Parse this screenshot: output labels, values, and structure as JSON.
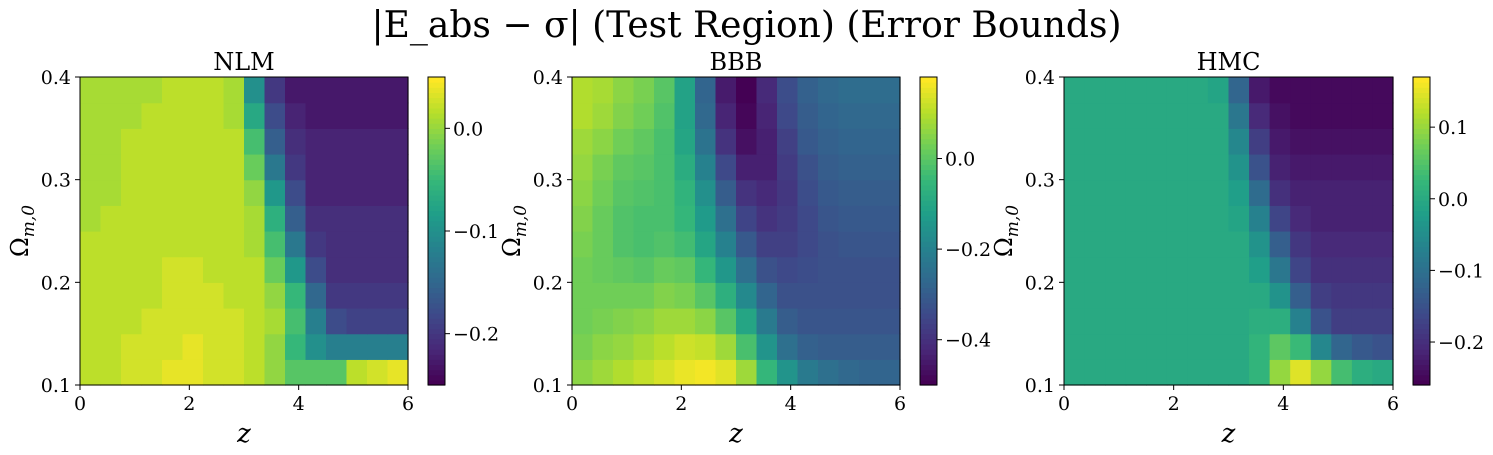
{
  "figure": {
    "suptitle": "|E_abs − σ| (Test Region) (Error Bounds)",
    "colormap": "viridis",
    "colors": [
      "#440154",
      "#482878",
      "#3e4989",
      "#31688e",
      "#26828e",
      "#1f9e89",
      "#35b779",
      "#6ece58",
      "#b5de2b",
      "#fde725"
    ]
  },
  "chart_data": [
    {
      "type": "heatmap",
      "title": "NLM",
      "xlabel": "z",
      "ylabel": "Ω_{m,0}",
      "xlim": [
        0,
        6
      ],
      "ylim": [
        0.1,
        0.4
      ],
      "xticks": [
        "0",
        "2",
        "4",
        "6"
      ],
      "yticks": [
        "0.1",
        "0.2",
        "0.3",
        "0.4"
      ],
      "clim": [
        -0.25,
        0.05
      ],
      "cticks": [
        "−0.2",
        "−0.1",
        "0.0"
      ],
      "cticks_values": [
        -0.2,
        -0.1,
        0.0
      ],
      "z": [
        [
          0.02,
          0.02,
          0.03,
          0.03,
          0.04,
          0.04,
          0.03,
          0.03,
          0.02,
          0.0,
          -0.03,
          -0.03,
          -0.03,
          0.02,
          0.03,
          0.04
        ],
        [
          0.02,
          0.02,
          0.03,
          0.03,
          0.03,
          0.04,
          0.03,
          0.03,
          0.02,
          0.0,
          -0.05,
          -0.1,
          -0.12,
          -0.12,
          -0.12,
          -0.12
        ],
        [
          0.02,
          0.02,
          0.02,
          0.03,
          0.03,
          0.03,
          0.03,
          0.03,
          0.02,
          0.01,
          -0.04,
          -0.12,
          -0.18,
          -0.19,
          -0.19,
          -0.19
        ],
        [
          0.02,
          0.02,
          0.02,
          0.02,
          0.03,
          0.03,
          0.03,
          0.02,
          0.02,
          0.0,
          -0.05,
          -0.15,
          -0.2,
          -0.2,
          -0.2,
          -0.2
        ],
        [
          0.02,
          0.02,
          0.02,
          0.02,
          0.03,
          0.03,
          0.02,
          0.02,
          0.02,
          -0.02,
          -0.09,
          -0.18,
          -0.21,
          -0.21,
          -0.21,
          -0.21
        ],
        [
          0.02,
          0.02,
          0.02,
          0.02,
          0.02,
          0.02,
          0.02,
          0.02,
          0.01,
          -0.04,
          -0.13,
          -0.2,
          -0.21,
          -0.21,
          -0.21,
          -0.21
        ],
        [
          0.01,
          0.02,
          0.02,
          0.02,
          0.02,
          0.02,
          0.02,
          0.02,
          0.01,
          -0.06,
          -0.16,
          -0.21,
          -0.21,
          -0.21,
          -0.21,
          -0.21
        ],
        [
          0.01,
          0.01,
          0.02,
          0.02,
          0.02,
          0.02,
          0.02,
          0.02,
          0.0,
          -0.09,
          -0.18,
          -0.22,
          -0.22,
          -0.22,
          -0.22,
          -0.22
        ],
        [
          0.01,
          0.01,
          0.02,
          0.02,
          0.02,
          0.02,
          0.02,
          0.02,
          -0.02,
          -0.13,
          -0.2,
          -0.22,
          -0.22,
          -0.22,
          -0.22,
          -0.22
        ],
        [
          0.01,
          0.01,
          0.02,
          0.02,
          0.02,
          0.02,
          0.02,
          0.02,
          -0.04,
          -0.16,
          -0.21,
          -0.22,
          -0.22,
          -0.22,
          -0.22,
          -0.22
        ],
        [
          0.01,
          0.01,
          0.01,
          0.02,
          0.02,
          0.02,
          0.02,
          0.01,
          -0.07,
          -0.18,
          -0.22,
          -0.23,
          -0.23,
          -0.23,
          -0.23,
          -0.23
        ],
        [
          0.01,
          0.01,
          0.01,
          0.01,
          0.02,
          0.02,
          0.02,
          0.01,
          -0.1,
          -0.2,
          -0.23,
          -0.23,
          -0.23,
          -0.23,
          -0.23,
          -0.23
        ]
      ]
    },
    {
      "type": "heatmap",
      "title": "BBB",
      "xlabel": "z",
      "ylabel": "Ω_{m,0}",
      "xlim": [
        0,
        6
      ],
      "ylim": [
        0.1,
        0.4
      ],
      "xticks": [
        "0",
        "2",
        "4",
        "6"
      ],
      "yticks": [
        "0.1",
        "0.2",
        "0.3",
        "0.4"
      ],
      "clim": [
        -0.5,
        0.18
      ],
      "cticks": [
        "−0.4",
        "−0.2",
        "0.0"
      ],
      "cticks_values": [
        -0.4,
        -0.2,
        0.0
      ],
      "z": [
        [
          0.06,
          0.08,
          0.1,
          0.12,
          0.14,
          0.16,
          0.17,
          0.15,
          0.08,
          -0.05,
          -0.15,
          -0.22,
          -0.25,
          -0.27,
          -0.28,
          -0.28
        ],
        [
          0.04,
          0.06,
          0.07,
          0.09,
          0.11,
          0.13,
          0.12,
          0.08,
          -0.02,
          -0.15,
          -0.25,
          -0.29,
          -0.3,
          -0.3,
          -0.3,
          -0.3
        ],
        [
          0.03,
          0.04,
          0.05,
          0.06,
          0.08,
          0.08,
          0.06,
          0.0,
          -0.1,
          -0.22,
          -0.3,
          -0.32,
          -0.32,
          -0.32,
          -0.32,
          -0.32
        ],
        [
          0.03,
          0.03,
          0.03,
          0.03,
          0.05,
          0.04,
          0.0,
          -0.07,
          -0.18,
          -0.28,
          -0.33,
          -0.33,
          -0.33,
          -0.33,
          -0.33,
          -0.33
        ],
        [
          0.03,
          0.02,
          0.01,
          0.0,
          0.02,
          0.01,
          -0.05,
          -0.14,
          -0.25,
          -0.33,
          -0.35,
          -0.34,
          -0.33,
          -0.33,
          -0.33,
          -0.33
        ],
        [
          0.04,
          0.02,
          -0.01,
          -0.02,
          -0.01,
          -0.03,
          -0.1,
          -0.2,
          -0.31,
          -0.37,
          -0.37,
          -0.35,
          -0.33,
          -0.32,
          -0.32,
          -0.32
        ],
        [
          0.05,
          0.02,
          -0.01,
          -0.02,
          -0.02,
          -0.05,
          -0.13,
          -0.25,
          -0.36,
          -0.4,
          -0.38,
          -0.35,
          -0.32,
          -0.31,
          -0.31,
          -0.31
        ],
        [
          0.06,
          0.03,
          0.0,
          -0.01,
          -0.02,
          -0.06,
          -0.16,
          -0.3,
          -0.4,
          -0.42,
          -0.39,
          -0.34,
          -0.31,
          -0.3,
          -0.3,
          -0.3
        ],
        [
          0.07,
          0.04,
          0.01,
          0.0,
          -0.02,
          -0.08,
          -0.2,
          -0.35,
          -0.44,
          -0.44,
          -0.38,
          -0.33,
          -0.3,
          -0.29,
          -0.29,
          -0.29
        ],
        [
          0.08,
          0.06,
          0.03,
          0.01,
          -0.02,
          -0.1,
          -0.24,
          -0.4,
          -0.47,
          -0.44,
          -0.37,
          -0.31,
          -0.29,
          -0.28,
          -0.28,
          -0.28
        ],
        [
          0.1,
          0.08,
          0.05,
          0.03,
          -0.01,
          -0.11,
          -0.27,
          -0.43,
          -0.49,
          -0.43,
          -0.35,
          -0.3,
          -0.28,
          -0.27,
          -0.27,
          -0.27
        ],
        [
          0.1,
          0.09,
          0.06,
          0.04,
          0.0,
          -0.11,
          -0.28,
          -0.45,
          -0.5,
          -0.42,
          -0.34,
          -0.29,
          -0.27,
          -0.26,
          -0.26,
          -0.26
        ]
      ]
    },
    {
      "type": "heatmap",
      "title": "HMC",
      "xlabel": "z",
      "ylabel": "Ω_{m,0}",
      "xlim": [
        0,
        6
      ],
      "ylim": [
        0.1,
        0.4
      ],
      "xticks": [
        "0",
        "2",
        "4",
        "6"
      ],
      "yticks": [
        "0.1",
        "0.2",
        "0.3",
        "0.4"
      ],
      "clim": [
        -0.26,
        0.17
      ],
      "cticks": [
        "−0.2",
        "−0.1",
        "0.0",
        "0.1"
      ],
      "cticks_values": [
        -0.2,
        -0.1,
        0.0,
        0.1
      ],
      "z": [
        [
          0.0,
          0.0,
          0.0,
          0.0,
          0.0,
          0.0,
          0.0,
          0.0,
          0.0,
          0.02,
          0.1,
          0.15,
          0.1,
          0.04,
          0.01,
          0.0
        ],
        [
          0.0,
          0.0,
          0.0,
          0.0,
          0.0,
          0.0,
          0.0,
          0.0,
          0.0,
          0.02,
          0.06,
          0.03,
          -0.06,
          -0.12,
          -0.14,
          -0.15
        ],
        [
          0.0,
          0.0,
          0.0,
          0.0,
          0.0,
          0.0,
          0.0,
          0.0,
          0.0,
          0.01,
          0.01,
          -0.07,
          -0.15,
          -0.18,
          -0.18,
          -0.18
        ],
        [
          0.0,
          0.0,
          0.0,
          0.0,
          0.0,
          0.0,
          0.0,
          0.0,
          0.0,
          0.0,
          -0.04,
          -0.13,
          -0.18,
          -0.19,
          -0.19,
          -0.19
        ],
        [
          0.0,
          0.0,
          0.0,
          0.0,
          0.0,
          0.0,
          0.0,
          0.0,
          0.0,
          -0.02,
          -0.09,
          -0.17,
          -0.2,
          -0.2,
          -0.2,
          -0.2
        ],
        [
          0.0,
          0.0,
          0.0,
          0.0,
          0.0,
          0.0,
          0.0,
          0.0,
          0.0,
          -0.04,
          -0.13,
          -0.19,
          -0.21,
          -0.21,
          -0.21,
          -0.21
        ],
        [
          0.0,
          0.0,
          0.0,
          0.0,
          0.0,
          0.0,
          0.0,
          0.0,
          -0.01,
          -0.07,
          -0.17,
          -0.21,
          -0.22,
          -0.22,
          -0.22,
          -0.22
        ],
        [
          0.0,
          0.0,
          0.0,
          0.0,
          0.0,
          0.0,
          0.0,
          0.0,
          -0.02,
          -0.11,
          -0.2,
          -0.22,
          -0.22,
          -0.22,
          -0.22,
          -0.22
        ],
        [
          0.0,
          0.0,
          0.0,
          0.0,
          0.0,
          0.0,
          0.0,
          0.0,
          -0.04,
          -0.15,
          -0.22,
          -0.23,
          -0.23,
          -0.23,
          -0.23,
          -0.23
        ],
        [
          0.0,
          0.0,
          0.0,
          0.0,
          0.0,
          0.0,
          0.0,
          0.0,
          -0.06,
          -0.18,
          -0.23,
          -0.24,
          -0.24,
          -0.24,
          -0.24,
          -0.24
        ],
        [
          0.0,
          0.0,
          0.0,
          0.0,
          0.0,
          0.0,
          0.0,
          0.0,
          -0.09,
          -0.21,
          -0.24,
          -0.25,
          -0.25,
          -0.25,
          -0.25,
          -0.25
        ],
        [
          0.0,
          0.0,
          0.0,
          0.0,
          0.0,
          0.0,
          0.0,
          -0.01,
          -0.12,
          -0.23,
          -0.25,
          -0.25,
          -0.25,
          -0.25,
          -0.25,
          -0.25
        ]
      ]
    }
  ]
}
